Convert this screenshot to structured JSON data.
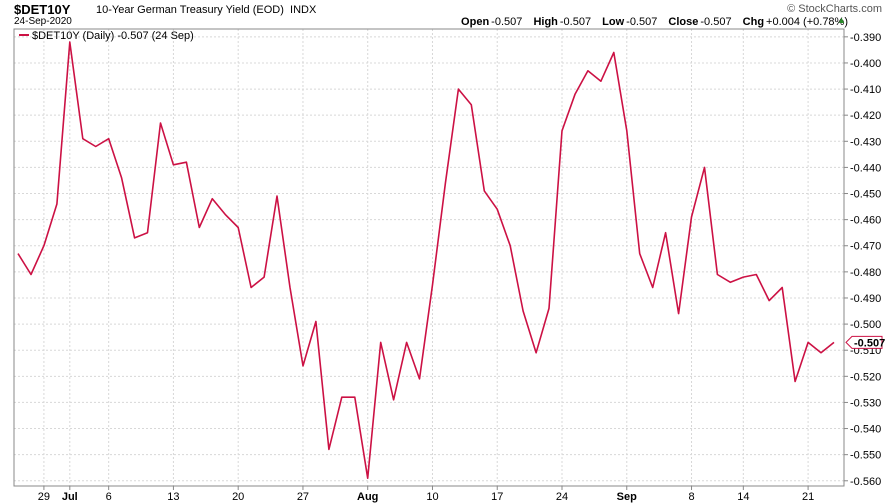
{
  "header": {
    "symbol": "$DET10Y",
    "title": "10-Year German Treasury Yield (EOD)",
    "exchange": "INDX",
    "date": "24-Sep-2020",
    "brand": "© StockCharts.com",
    "open_label": "Open",
    "open": "-0.507",
    "high_label": "High",
    "high": "-0.507",
    "low_label": "Low",
    "low": "-0.507",
    "close_label": "Close",
    "close": "-0.507",
    "chg_label": "Chg",
    "chg": "+0.004 (+0.78%)",
    "up_arrow": "▲"
  },
  "legend": {
    "text": "$DET10Y (Daily) -0.507 (24 Sep)"
  },
  "last_value_label": "-0.507",
  "colors": {
    "line": "#cc1144",
    "grid": "#d8d8d8",
    "axis": "#888888"
  },
  "chart_data": {
    "type": "line",
    "series": [
      {
        "name": "$DET10Y (Daily)",
        "values": [
          -0.473,
          -0.481,
          -0.47,
          -0.454,
          -0.392,
          -0.429,
          -0.432,
          -0.429,
          -0.444,
          -0.467,
          -0.465,
          -0.423,
          -0.439,
          -0.438,
          -0.463,
          -0.452,
          -0.458,
          -0.463,
          -0.486,
          -0.482,
          -0.451,
          -0.486,
          -0.516,
          -0.499,
          -0.548,
          -0.528,
          -0.528,
          -0.559,
          -0.507,
          -0.529,
          -0.507,
          -0.521,
          -0.485,
          -0.446,
          -0.41,
          -0.416,
          -0.449,
          -0.456,
          -0.47,
          -0.495,
          -0.511,
          -0.494,
          -0.426,
          -0.412,
          -0.403,
          -0.407,
          -0.396,
          -0.426,
          -0.473,
          -0.486,
          -0.465,
          -0.496,
          -0.459,
          -0.44,
          -0.481,
          -0.484,
          -0.482,
          -0.481,
          -0.491,
          -0.486,
          -0.522,
          -0.507,
          -0.511,
          -0.507
        ]
      }
    ],
    "x_tick_labels": [
      "29",
      "Jul",
      "6",
      "13",
      "20",
      "27",
      "Aug",
      "10",
      "17",
      "24",
      "Sep",
      "8",
      "14",
      "21"
    ],
    "x_tick_index": [
      2,
      4,
      7,
      12,
      17,
      22,
      27,
      32,
      37,
      42,
      47,
      52,
      56,
      61
    ],
    "x_tick_bold": [
      false,
      true,
      false,
      false,
      false,
      false,
      true,
      false,
      false,
      false,
      true,
      false,
      false,
      false
    ],
    "y_ticks": [
      "-0.390",
      "-0.400",
      "-0.410",
      "-0.420",
      "-0.430",
      "-0.440",
      "-0.450",
      "-0.460",
      "-0.470",
      "-0.480",
      "-0.490",
      "-0.500",
      "-0.510",
      "-0.520",
      "-0.530",
      "-0.540",
      "-0.550",
      "-0.560"
    ],
    "ylim": [
      -0.562,
      -0.387
    ],
    "grid": true
  }
}
